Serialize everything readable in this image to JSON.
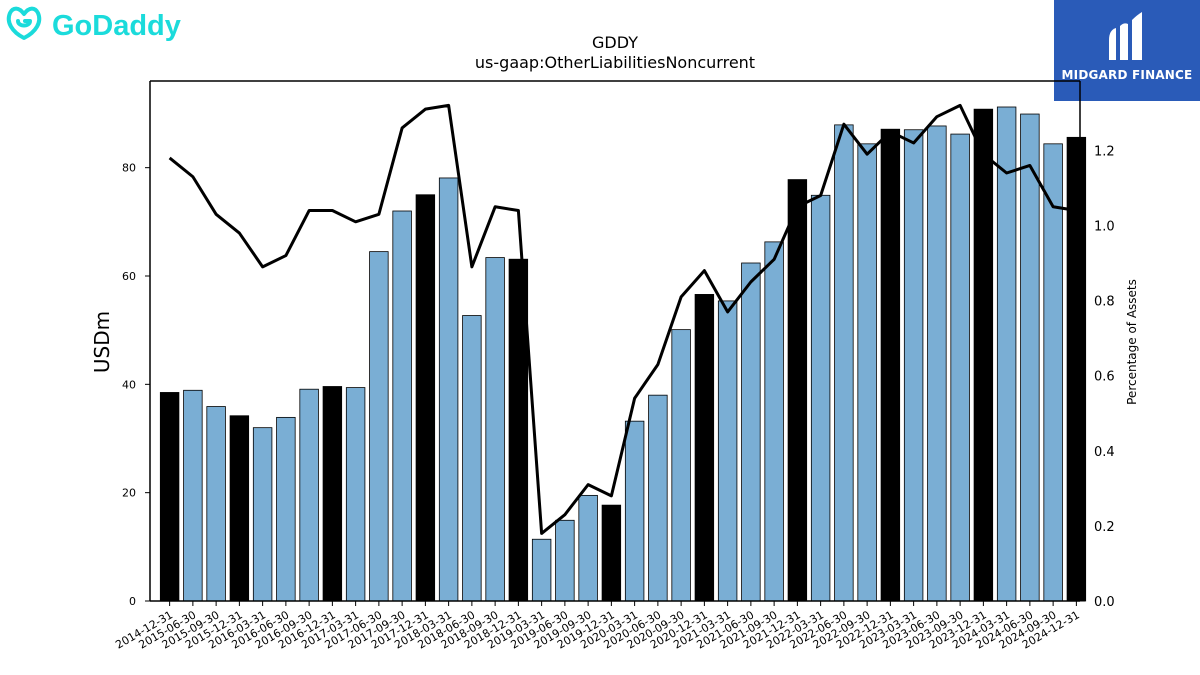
{
  "brand_left": {
    "name": "GoDaddy",
    "color": "#1bdbdb"
  },
  "brand_right": {
    "name": "MIDGARD FINANCE",
    "color": "#2a5bb8"
  },
  "chart_data": {
    "type": "bar",
    "title": "GDDY",
    "subtitle": "us-gaap:OtherLiabilitiesNoncurrent",
    "ylabel": "USDm",
    "y2label": "Percentage of Assets",
    "ylim": [
      0,
      96
    ],
    "y2lim": [
      0,
      1.385
    ],
    "yticks": [
      0,
      20,
      40,
      60,
      80
    ],
    "y2ticks": [
      0.0,
      0.2,
      0.4,
      0.6,
      0.8,
      1.0,
      1.2
    ],
    "categories": [
      "2014-12-31",
      "2015-06-30",
      "2015-09-30",
      "2015-12-31",
      "2016-03-31",
      "2016-06-30",
      "2016-09-30",
      "2016-12-31",
      "2017-03-31",
      "2017-06-30",
      "2017-09-30",
      "2017-12-31",
      "2018-03-31",
      "2018-06-30",
      "2018-09-30",
      "2018-12-31",
      "2019-03-31",
      "2019-06-30",
      "2019-09-30",
      "2019-12-31",
      "2020-03-31",
      "2020-06-30",
      "2020-09-30",
      "2020-12-31",
      "2021-03-31",
      "2021-06-30",
      "2021-09-30",
      "2021-12-31",
      "2022-03-31",
      "2022-06-30",
      "2022-09-30",
      "2022-12-31",
      "2023-03-31",
      "2023-06-30",
      "2023-09-30",
      "2023-12-31",
      "2024-03-31",
      "2024-06-30",
      "2024-09-30",
      "2024-12-31"
    ],
    "series": [
      {
        "type": "bar",
        "values": [
          38.5,
          38.9,
          35.9,
          34.2,
          32.0,
          33.9,
          39.1,
          39.6,
          39.4,
          64.5,
          72.0,
          75.0,
          78.1,
          52.7,
          63.4,
          63.1,
          11.4,
          14.9,
          19.5,
          17.7,
          33.2,
          38.0,
          50.1,
          56.6,
          55.4,
          62.4,
          66.3,
          77.8,
          74.9,
          87.9,
          84.4,
          87.1,
          87.0,
          87.7,
          86.2,
          90.8,
          91.2,
          89.9,
          84.4,
          85.6
        ],
        "highlight": [
          true,
          false,
          false,
          true,
          false,
          false,
          false,
          true,
          false,
          false,
          false,
          true,
          false,
          false,
          false,
          true,
          false,
          false,
          false,
          true,
          false,
          false,
          false,
          true,
          false,
          false,
          false,
          true,
          false,
          false,
          false,
          true,
          false,
          false,
          false,
          true,
          false,
          false,
          false,
          true
        ],
        "color": "#7aaed4",
        "highlight_color": "#000000"
      },
      {
        "type": "line",
        "axis": "right",
        "values": [
          1.18,
          1.13,
          1.03,
          0.98,
          0.89,
          0.92,
          1.04,
          1.04,
          1.01,
          1.03,
          1.26,
          1.31,
          1.32,
          0.89,
          1.05,
          1.04,
          0.18,
          0.23,
          0.31,
          0.28,
          0.54,
          0.63,
          0.81,
          0.88,
          0.77,
          0.85,
          0.91,
          1.05,
          1.08,
          1.27,
          1.19,
          1.25,
          1.22,
          1.29,
          1.32,
          1.19,
          1.14,
          1.16,
          1.05,
          1.04
        ],
        "color": "#000000"
      }
    ]
  }
}
